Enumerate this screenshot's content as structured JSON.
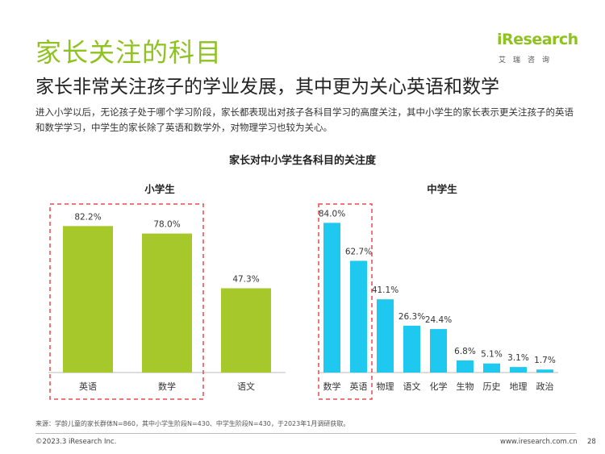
{
  "header": {
    "title": "家长关注的科目",
    "subtitle": "家长非常关注孩子的学业发展，其中更为关心英语和数学",
    "description": "进入小学以后，无论孩子处于哪个学习阶段，家长都表现出对孩子各科目学习的高度关注，其中小学生的家长表示更关注孩子的英语和数学学习，中学生的家长除了英语和数学外，对物理学习也较为关心。"
  },
  "logo": {
    "main": "iResearch",
    "sub": "艾瑞咨询",
    "color": "#8dc21f"
  },
  "chart_title": "家长对中小学生各科目的关注度",
  "chart_data": [
    {
      "type": "bar",
      "title": "小学生",
      "categories": [
        "英语",
        "数学",
        "语文"
      ],
      "values": [
        82.2,
        78.0,
        47.3
      ],
      "value_labels": [
        "82.2%",
        "78.0%",
        "47.3%"
      ],
      "ylim": [
        0,
        100
      ],
      "color": "#a6c82a",
      "highlighted": [
        "英语",
        "数学"
      ]
    },
    {
      "type": "bar",
      "title": "中学生",
      "categories": [
        "数学",
        "英语",
        "物理",
        "语文",
        "化学",
        "生物",
        "历史",
        "地理",
        "政治"
      ],
      "values": [
        84.0,
        62.7,
        41.1,
        26.3,
        24.4,
        6.8,
        5.1,
        3.1,
        1.7
      ],
      "value_labels": [
        "84.0%",
        "62.7%",
        "41.1%",
        "26.3%",
        "24.4%",
        "6.8%",
        "5.1%",
        "3.1%",
        "1.7%"
      ],
      "ylim": [
        0,
        100
      ],
      "color": "#1ec8ef",
      "highlighted": [
        "数学",
        "英语"
      ]
    }
  ],
  "footer": {
    "source": "来源：学龄儿童的家长群体N=860，其中小学生阶段N=430、中学生阶段N=430，于2023年1月调研获取。",
    "copyright": "©2023.3 iResearch Inc.",
    "website": "www.iresearch.com.cn",
    "page": "28"
  },
  "colors": {
    "accent": "#8dc21f",
    "highlight_border": "#e8484f"
  }
}
